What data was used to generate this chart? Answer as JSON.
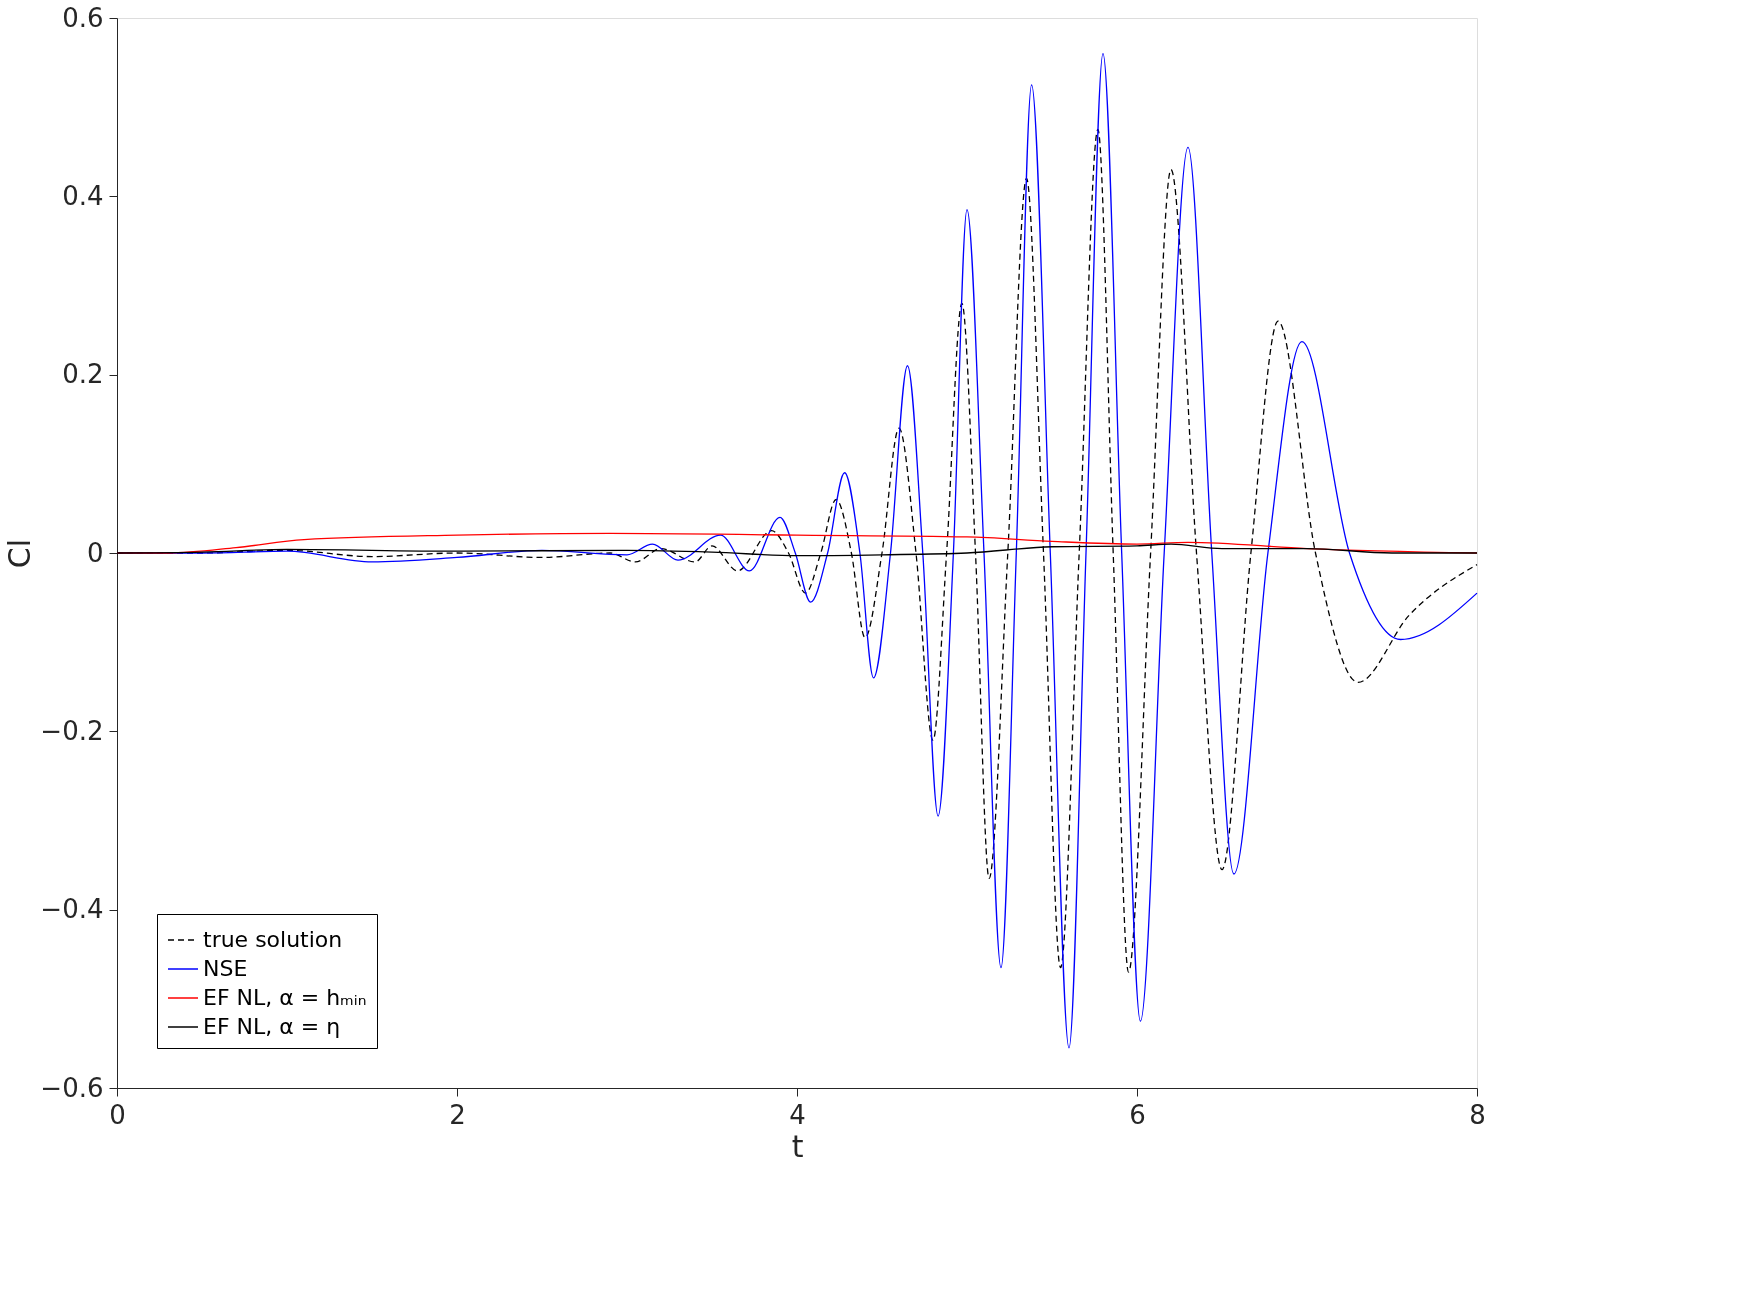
{
  "chart_data": {
    "type": "line",
    "xlabel": "t",
    "ylabel": "Cl",
    "xlim": [
      0,
      8
    ],
    "ylim": [
      -0.6,
      0.6
    ],
    "xticks": [
      0,
      2,
      4,
      6,
      8
    ],
    "yticks": [
      -0.6,
      -0.4,
      -0.2,
      0,
      0.2,
      0.4,
      0.6
    ],
    "grid": false,
    "legend": "bottom left",
    "marker": "none",
    "series": [
      {
        "name": "true solution",
        "color": "#000000",
        "line_style": "dashed",
        "x": [
          0,
          0.5,
          1,
          1.5,
          2,
          2.5,
          2.9,
          3.05,
          3.2,
          3.4,
          3.5,
          3.65,
          3.85,
          3.95,
          4.05,
          4.14,
          4.23,
          4.32,
          4.4,
          4.5,
          4.6,
          4.7,
          4.8,
          4.88,
          4.97,
          5.05,
          5.13,
          5.24,
          5.35,
          5.45,
          5.55,
          5.66,
          5.77,
          5.86,
          5.95,
          6.08,
          6.2,
          6.35,
          6.5,
          6.67,
          6.83,
          7.05,
          7.3,
          7.6,
          8
        ],
        "values": [
          0,
          0,
          0.003,
          -0.004,
          0,
          -0.005,
          0,
          -0.01,
          0.005,
          -0.01,
          0.008,
          -0.02,
          0.025,
          0,
          -0.045,
          0,
          0.06,
          0,
          -0.095,
          0,
          0.14,
          0,
          -0.21,
          0,
          0.28,
          0,
          -0.365,
          0,
          0.42,
          0,
          -0.465,
          0,
          0.475,
          0,
          -0.47,
          0,
          0.43,
          0,
          -0.355,
          0,
          0.26,
          0,
          -0.145,
          -0.07,
          -0.013
        ]
      },
      {
        "name": "NSE",
        "color": "#0000ff",
        "line_style": "solid",
        "x": [
          0,
          0.5,
          1,
          1.5,
          2,
          2.5,
          3,
          3.15,
          3.3,
          3.55,
          3.72,
          3.9,
          3.99,
          4.08,
          4.18,
          4.28,
          4.37,
          4.45,
          4.55,
          4.65,
          4.74,
          4.83,
          4.92,
          5.0,
          5.1,
          5.2,
          5.29,
          5.38,
          5.49,
          5.6,
          5.7,
          5.8,
          5.91,
          6.02,
          6.16,
          6.3,
          6.44,
          6.57,
          6.77,
          6.97,
          7.25,
          7.55,
          8
        ],
        "values": [
          0,
          0,
          0.002,
          -0.01,
          -0.005,
          0.003,
          -0.002,
          0.01,
          -0.008,
          0.02,
          -0.02,
          0.04,
          0,
          -0.055,
          0,
          0.09,
          0,
          -0.14,
          0,
          0.21,
          0,
          -0.295,
          0,
          0.385,
          0,
          -0.465,
          0,
          0.525,
          0,
          -0.555,
          0,
          0.56,
          0,
          -0.525,
          0,
          0.455,
          0,
          -0.36,
          0,
          0.237,
          0,
          -0.097,
          -0.045
        ]
      },
      {
        "name": "EF NL, α = hₘᵢₙ",
        "color": "#ff0000",
        "line_style": "solid",
        "x": [
          0,
          0.3,
          0.7,
          1.1,
          2,
          2.9,
          4,
          5,
          5.5,
          6,
          6.3,
          7,
          8
        ],
        "values": [
          0,
          0,
          0.006,
          0.015,
          0.02,
          0.022,
          0.02,
          0.018,
          0.013,
          0.01,
          0.012,
          0.005,
          0
        ]
      },
      {
        "name": "EF NL, α = η",
        "color": "#000000",
        "line_style": "solid",
        "x": [
          0,
          0.5,
          1,
          2,
          3,
          3.5,
          4,
          4.5,
          5,
          5.5,
          6,
          6.2,
          6.5,
          7,
          7.5,
          8
        ],
        "values": [
          0,
          0.001,
          0.004,
          0.002,
          0.003,
          0.001,
          -0.003,
          -0.002,
          0,
          0.007,
          0.008,
          0.01,
          0.005,
          0.005,
          0,
          0
        ]
      }
    ]
  }
}
